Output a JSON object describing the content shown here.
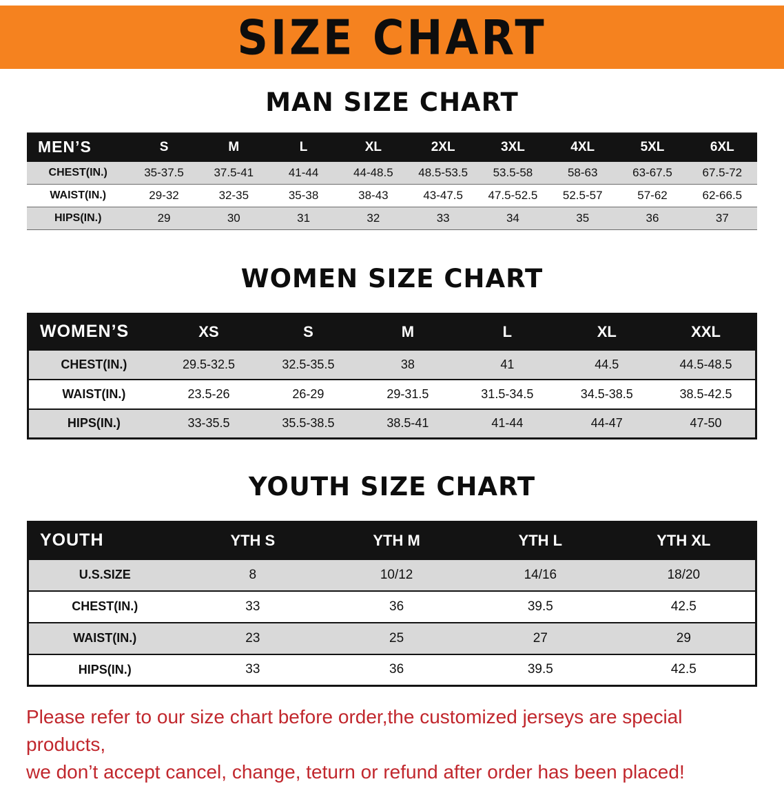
{
  "banner": {
    "title": "SIZE CHART"
  },
  "colors": {
    "banner_bg": "#F5821F",
    "header_bg": "#131313",
    "row_gray": "#D9D9D9",
    "disclaimer_red": "#C1272D"
  },
  "sections": [
    {
      "id": "men",
      "title": "MAN SIZE CHART",
      "table": {
        "header": [
          "MEN’S",
          "S",
          "M",
          "L",
          "XL",
          "2XL",
          "3XL",
          "4XL",
          "5XL",
          "6XL"
        ],
        "rows": [
          [
            "CHEST(IN.)",
            "35-37.5",
            "37.5-41",
            "41-44",
            "44-48.5",
            "48.5-53.5",
            "53.5-58",
            "58-63",
            "63-67.5",
            "67.5-72"
          ],
          [
            "WAIST(IN.)",
            "29-32",
            "32-35",
            "35-38",
            "38-43",
            "43-47.5",
            "47.5-52.5",
            "52.5-57",
            "57-62",
            "62-66.5"
          ],
          [
            "HIPS(IN.)",
            "29",
            "30",
            "31",
            "32",
            "33",
            "34",
            "35",
            "36",
            "37"
          ]
        ]
      }
    },
    {
      "id": "women",
      "title": "WOMEN SIZE CHART",
      "table": {
        "header": [
          "WOMEN’S",
          "XS",
          "S",
          "M",
          "L",
          "XL",
          "XXL"
        ],
        "rows": [
          [
            "CHEST(IN.)",
            "29.5-32.5",
            "32.5-35.5",
            "38",
            "41",
            "44.5",
            "44.5-48.5"
          ],
          [
            "WAIST(IN.)",
            "23.5-26",
            "26-29",
            "29-31.5",
            "31.5-34.5",
            "34.5-38.5",
            "38.5-42.5"
          ],
          [
            "HIPS(IN.)",
            "33-35.5",
            "35.5-38.5",
            "38.5-41",
            "41-44",
            "44-47",
            "47-50"
          ]
        ]
      }
    },
    {
      "id": "youth",
      "title": "YOUTH SIZE CHART",
      "table": {
        "header": [
          "YOUTH",
          "YTH S",
          "YTH M",
          "YTH L",
          "YTH XL"
        ],
        "rows": [
          [
            "U.S.SIZE",
            "8",
            "10/12",
            "14/16",
            "18/20"
          ],
          [
            "CHEST(IN.)",
            "33",
            "36",
            "39.5",
            "42.5"
          ],
          [
            "WAIST(IN.)",
            "23",
            "25",
            "27",
            "29"
          ],
          [
            "HIPS(IN.)",
            "33",
            "36",
            "39.5",
            "42.5"
          ]
        ]
      }
    }
  ],
  "disclaimer": {
    "line1": "Please refer to our size chart before order,the customized jerseys are special products,",
    "line2": "we don’t accept cancel, change, teturn or refund after order has been placed!"
  }
}
